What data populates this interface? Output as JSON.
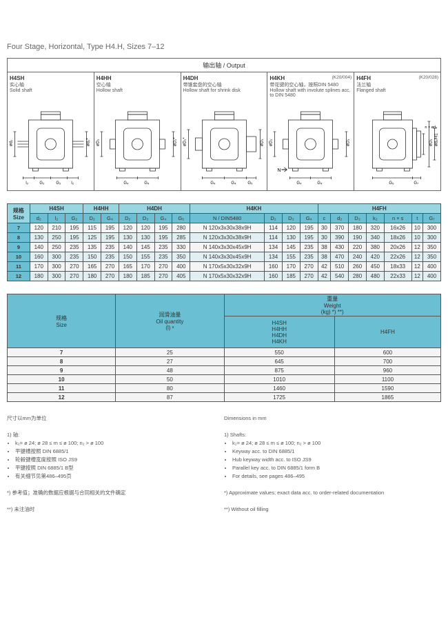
{
  "title": "Four Stage, Horizontal, Type H4.H, Sizes 7–12",
  "output_header": "输出轴 / Output",
  "shafts": [
    {
      "code": "H4SH",
      "cn": "实心轴",
      "en": "Solid shaft",
      "right": ""
    },
    {
      "code": "H4HH",
      "cn": "空心轴",
      "en": "Hollow shaft",
      "right": ""
    },
    {
      "code": "H4DH",
      "cn": "带锥套盘的空心轴",
      "en": "Hollow shaft for shrink disk",
      "right": ""
    },
    {
      "code": "H4KH",
      "cn": "带花键的空心轴，按照DIN 5480",
      "en": "Hollow shaft with involute splines acc. to DIN 5480",
      "right": "(K20/004)"
    },
    {
      "code": "H4FH",
      "cn": "法兰轴",
      "en": "Flanged shaft",
      "right": "(K20/028)"
    }
  ],
  "diagram_labels": {
    "d2": "ød₂",
    "d2p": "ød₂*",
    "D2": "øD₂",
    "D2p": "øD₂*",
    "D3": "øD₃",
    "d2i": "ød₂/H1",
    "D5": "øD₅",
    "d8": "n × ød₈",
    "l2a": "l₂",
    "l2b": "l₂",
    "G2": "G₂",
    "G2a": "G₂",
    "G4": "G₄",
    "G5": "G₅",
    "G6": "G₆",
    "G7": "G₇",
    "N": "N"
  },
  "spec_groups": [
    "H4SH",
    "H4HH",
    "H4DH",
    "H4KH",
    "H4FH"
  ],
  "spec_cols_label": {
    "size_cn": "规格",
    "size_en": "Size"
  },
  "spec_cols": [
    "d₂",
    "l₂",
    "G₂",
    "D₂",
    "G₄",
    "D₂",
    "D₃",
    "G₄",
    "G₅",
    "N / DIN5480",
    "D₂",
    "D₃",
    "G₄",
    "c",
    "d₂",
    "D₃",
    "k₂",
    "n × s",
    "t",
    "G₇"
  ],
  "spec_rows": [
    {
      "size": "7",
      "cells": [
        "120",
        "210",
        "195",
        "115",
        "195",
        "120",
        "120",
        "195",
        "280",
        "N 120x3x30x38x9H",
        "114",
        "120",
        "195",
        "30",
        "370",
        "180",
        "320",
        "16x26",
        "10",
        "300"
      ]
    },
    {
      "size": "8",
      "cells": [
        "130",
        "250",
        "195",
        "125",
        "195",
        "130",
        "130",
        "195",
        "285",
        "N 120x3x30x38x9H",
        "114",
        "130",
        "195",
        "30",
        "390",
        "190",
        "340",
        "18x26",
        "10",
        "300"
      ]
    },
    {
      "size": "9",
      "cells": [
        "140",
        "250",
        "235",
        "135",
        "235",
        "140",
        "145",
        "235",
        "330",
        "N 140x3x30x45x9H",
        "134",
        "145",
        "235",
        "38",
        "430",
        "220",
        "380",
        "20x26",
        "12",
        "350"
      ]
    },
    {
      "size": "10",
      "cells": [
        "160",
        "300",
        "235",
        "150",
        "235",
        "150",
        "155",
        "235",
        "350",
        "N 140x3x30x45x9H",
        "134",
        "155",
        "235",
        "38",
        "470",
        "240",
        "420",
        "22x26",
        "12",
        "350"
      ]
    },
    {
      "size": "11",
      "cells": [
        "170",
        "300",
        "270",
        "165",
        "270",
        "165",
        "170",
        "270",
        "400",
        "N 170x5x30x32x9H",
        "160",
        "170",
        "270",
        "42",
        "510",
        "260",
        "450",
        "18x33",
        "12",
        "400"
      ]
    },
    {
      "size": "12",
      "cells": [
        "180",
        "300",
        "270",
        "180",
        "270",
        "180",
        "185",
        "270",
        "405",
        "N 170x5x30x32x9H",
        "160",
        "185",
        "270",
        "42",
        "540",
        "280",
        "480",
        "22x33",
        "12",
        "400"
      ]
    }
  ],
  "weight_headers": {
    "size_cn": "规格",
    "size_en": "Size",
    "oil_cn": "润滑油量",
    "oil_en": "Oil quantity",
    "oil_unit": "(l) ˢ",
    "weight_cn": "重量",
    "weight_en": "Weight",
    "weight_unit": "(kg) *) **)",
    "grp1": "H4SH\nH4HH\nH4DH\nH4KH",
    "grp2": "H4FH"
  },
  "weight_rows": [
    {
      "size": "7",
      "oil": "25",
      "w1": "550",
      "w2": "600"
    },
    {
      "size": "8",
      "oil": "27",
      "w1": "645",
      "w2": "700"
    },
    {
      "size": "9",
      "oil": "48",
      "w1": "875",
      "w2": "960"
    },
    {
      "size": "10",
      "oil": "50",
      "w1": "1010",
      "w2": "1100"
    },
    {
      "size": "11",
      "oil": "80",
      "w1": "1460",
      "w2": "1590"
    },
    {
      "size": "12",
      "oil": "87",
      "w1": "1725",
      "w2": "1865"
    }
  ],
  "footnotes": {
    "left": {
      "head": "尺寸以mm为单位",
      "sec": "1) 轴:",
      "items": [
        "k₂= ø 24; ø 28 ≤ m ≤ ø 100; n₂ > ø 100",
        "平键槽按照 DIN 6885/1",
        "轮毂键槽宽度按照 ISO JS9",
        "平键按照 DIN 6885/1 B型",
        "有关细节见第486–495页"
      ],
      "star": "*) 参考值；准确的数据应根据与合同相关的文件确定",
      "dstar": "**) 未注油时"
    },
    "right": {
      "head": "Dimensions in mm",
      "sec": "1) Shafts:",
      "items": [
        "k₂= ø 24; ø 28 ≤ m ≤ ø 100; n₂ > ø 100",
        "Keyway acc. to DIN 6885/1",
        "Hub keyway width acc. to ISO JS9",
        "Parallel key acc. to DIN 6885/1 form B",
        "For details, see pages 486–495"
      ],
      "star": "*) Approximate values; exact data acc. to order-related documentation",
      "dstar": "**) Without oil filling"
    }
  },
  "colors": {
    "blue1": "#98d7e2",
    "blue2": "#6ac0d2",
    "line": "#555"
  }
}
